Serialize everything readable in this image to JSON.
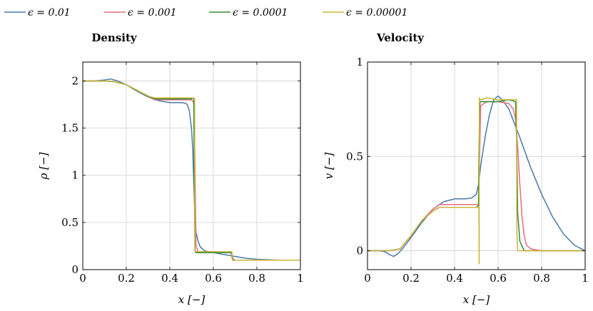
{
  "colors": {
    "eps_0_01": "#4a7aa8",
    "eps_0_001": "#e86a7f",
    "eps_0_0001": "#2e8b3a",
    "eps_0_00001": "#ccb43a",
    "grid": "#d0d0d0"
  },
  "legend": [
    {
      "label": "ϵ = 0.01",
      "color": "#4a7aa8"
    },
    {
      "label": "ϵ = 0.001",
      "color": "#e86a7f"
    },
    {
      "label": "ϵ = 0.0001",
      "color": "#2e8b3a"
    },
    {
      "label": "ϵ = 0.00001",
      "color": "#ccb43a"
    }
  ],
  "chart_data": [
    {
      "type": "line",
      "title": "Density",
      "xlabel": "x [−]",
      "ylabel": "ρ [−]",
      "xlim": [
        0,
        1
      ],
      "ylim": [
        0,
        2.2
      ],
      "xticks": [
        "0",
        "0.2",
        "0.4",
        "0.6",
        "0.8",
        "1"
      ],
      "xtick_values": [
        0,
        0.2,
        0.4,
        0.6,
        0.8,
        1
      ],
      "yticks": [
        "0",
        "0.5",
        "1",
        "1.5",
        "2"
      ],
      "ytick_values": [
        0,
        0.5,
        1,
        1.5,
        2
      ],
      "grid": true,
      "series": [
        {
          "name": "ϵ = 0.01",
          "color": "#4a7aa8",
          "x": [
            0,
            0.05,
            0.1,
            0.13,
            0.16,
            0.2,
            0.25,
            0.3,
            0.35,
            0.4,
            0.45,
            0.47,
            0.48,
            0.49,
            0.5,
            0.505,
            0.51,
            0.515,
            0.52,
            0.53,
            0.54,
            0.56,
            0.6,
            0.65,
            0.7,
            0.75,
            0.8,
            0.9,
            1
          ],
          "y": [
            2.0,
            2.0,
            2.01,
            2.02,
            2.0,
            1.96,
            1.89,
            1.83,
            1.79,
            1.77,
            1.77,
            1.765,
            1.75,
            1.68,
            1.48,
            1.28,
            0.92,
            0.6,
            0.4,
            0.3,
            0.24,
            0.2,
            0.18,
            0.16,
            0.14,
            0.12,
            0.11,
            0.1,
            0.1
          ]
        },
        {
          "name": "ϵ = 0.001",
          "color": "#e86a7f",
          "x": [
            0,
            0.1,
            0.15,
            0.2,
            0.25,
            0.3,
            0.33,
            0.4,
            0.5,
            0.51,
            0.515,
            0.52,
            0.53,
            0.6,
            0.68,
            0.685,
            0.69,
            0.7,
            0.75,
            0.85,
            1
          ],
          "y": [
            2.0,
            2.0,
            1.99,
            1.96,
            1.9,
            1.84,
            1.8,
            1.8,
            1.8,
            1.77,
            1.2,
            0.25,
            0.19,
            0.19,
            0.18,
            0.15,
            0.12,
            0.1,
            0.1,
            0.1,
            0.1
          ]
        },
        {
          "name": "ϵ = 0.0001",
          "color": "#2e8b3a",
          "x": [
            0,
            0.1,
            0.15,
            0.2,
            0.25,
            0.3,
            0.33,
            0.4,
            0.5,
            0.51,
            0.512,
            0.516,
            0.52,
            0.6,
            0.684,
            0.686,
            0.69,
            0.7,
            0.8,
            1
          ],
          "y": [
            2.0,
            2.0,
            1.99,
            1.96,
            1.9,
            1.84,
            1.81,
            1.81,
            1.81,
            1.82,
            1.0,
            0.2,
            0.18,
            0.18,
            0.18,
            0.12,
            0.1,
            0.1,
            0.1,
            0.1
          ]
        },
        {
          "name": "ϵ = 0.00001",
          "color": "#ccb43a",
          "x": [
            0,
            0.1,
            0.15,
            0.2,
            0.25,
            0.3,
            0.33,
            0.4,
            0.5,
            0.514,
            0.515,
            0.52,
            0.6,
            0.685,
            0.686,
            0.7,
            0.8,
            1
          ],
          "y": [
            2.0,
            2.0,
            1.99,
            1.96,
            1.9,
            1.84,
            1.82,
            1.82,
            1.82,
            1.81,
            0.2,
            0.19,
            0.19,
            0.19,
            0.11,
            0.1,
            0.1,
            0.1
          ]
        }
      ]
    },
    {
      "type": "line",
      "title": "Velocity",
      "xlabel": "x [−]",
      "ylabel": "v [−]",
      "xlim": [
        0,
        1
      ],
      "ylim": [
        -0.1,
        1
      ],
      "xticks": [
        "0",
        "0.2",
        "0.4",
        "0.6",
        "0.8",
        "1"
      ],
      "xtick_values": [
        0,
        0.2,
        0.4,
        0.6,
        0.8,
        1
      ],
      "yticks": [
        "0",
        "0.5",
        "1"
      ],
      "ytick_values": [
        0,
        0.5,
        1
      ],
      "grid": true,
      "series": [
        {
          "name": "ϵ = 0.01",
          "color": "#4a7aa8",
          "x": [
            0,
            0.05,
            0.08,
            0.1,
            0.12,
            0.14,
            0.16,
            0.2,
            0.25,
            0.3,
            0.35,
            0.4,
            0.45,
            0.48,
            0.5,
            0.51,
            0.52,
            0.54,
            0.56,
            0.58,
            0.6,
            0.62,
            0.65,
            0.7,
            0.75,
            0.8,
            0.85,
            0.9,
            0.95,
            1
          ],
          "y": [
            0,
            0,
            -0.005,
            -0.02,
            -0.03,
            -0.015,
            0.01,
            0.07,
            0.15,
            0.22,
            0.26,
            0.275,
            0.275,
            0.28,
            0.3,
            0.35,
            0.45,
            0.6,
            0.72,
            0.8,
            0.82,
            0.8,
            0.75,
            0.6,
            0.44,
            0.3,
            0.18,
            0.09,
            0.03,
            0
          ]
        },
        {
          "name": "ϵ = 0.001",
          "color": "#e86a7f",
          "x": [
            0,
            0.1,
            0.15,
            0.2,
            0.25,
            0.3,
            0.33,
            0.4,
            0.5,
            0.51,
            0.515,
            0.52,
            0.55,
            0.6,
            0.65,
            0.67,
            0.68,
            0.69,
            0.7,
            0.71,
            0.72,
            0.73,
            0.75,
            0.8,
            1
          ],
          "y": [
            0,
            0,
            0.01,
            0.08,
            0.16,
            0.22,
            0.245,
            0.245,
            0.245,
            0.245,
            0.5,
            0.77,
            0.79,
            0.79,
            0.78,
            0.75,
            0.7,
            0.55,
            0.35,
            0.18,
            0.08,
            0.03,
            0.01,
            0,
            0
          ]
        },
        {
          "name": "ϵ = 0.0001",
          "color": "#2e8b3a",
          "x": [
            0,
            0.1,
            0.15,
            0.2,
            0.25,
            0.3,
            0.33,
            0.4,
            0.5,
            0.51,
            0.512,
            0.516,
            0.52,
            0.55,
            0.6,
            0.65,
            0.68,
            0.685,
            0.69,
            0.7,
            0.72,
            1
          ],
          "y": [
            0,
            0,
            0.01,
            0.08,
            0.16,
            0.21,
            0.23,
            0.23,
            0.23,
            0.24,
            0.5,
            0.78,
            0.79,
            0.79,
            0.79,
            0.8,
            0.79,
            0.6,
            0.2,
            0.05,
            0,
            0
          ]
        },
        {
          "name": "ϵ = 0.00001",
          "color": "#ccb43a",
          "x": [
            0,
            0.1,
            0.15,
            0.2,
            0.25,
            0.3,
            0.33,
            0.4,
            0.5,
            0.512,
            0.513,
            0.5135,
            0.514,
            0.518,
            0.55,
            0.6,
            0.65,
            0.685,
            0.686,
            0.69,
            0.7,
            1
          ],
          "y": [
            0,
            0,
            0.01,
            0.08,
            0.16,
            0.21,
            0.23,
            0.23,
            0.23,
            0.23,
            -0.07,
            0.5,
            0.81,
            0.8,
            0.81,
            0.8,
            0.8,
            0.8,
            0.1,
            0,
            0,
            0
          ]
        }
      ]
    }
  ]
}
